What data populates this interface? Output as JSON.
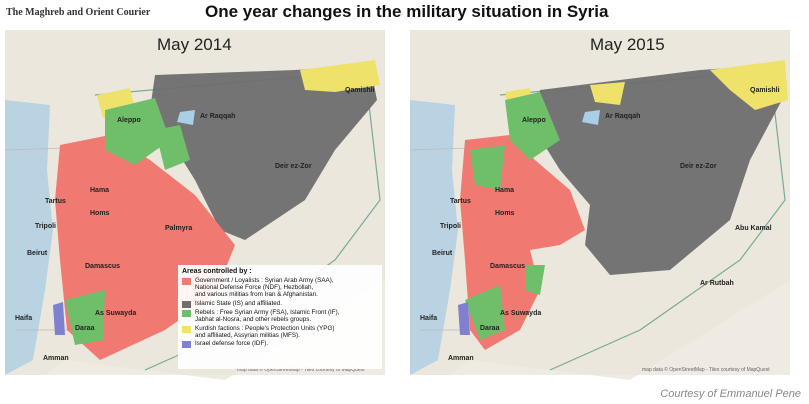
{
  "header": {
    "logo": "The Maghreb and Orient Courier",
    "title": "One year changes in the military situation in Syria"
  },
  "maps": [
    {
      "label": "May 2014",
      "attribution": "map data © OpenStreetMap - Tiles courtesy of MapQuest",
      "cities": [
        "Aleppo",
        "Ar Raqqah",
        "Deir ez-Zor",
        "Qamishli",
        "Hama",
        "Homs",
        "Tartus",
        "Tripoli",
        "Beirut",
        "Damascus",
        "As Suwayda",
        "Daraa",
        "Haifa",
        "Amman",
        "Palmyra"
      ]
    },
    {
      "label": "May 2015",
      "attribution": "map data © OpenStreetMap - Tiles courtesy of MapQuest",
      "cities": [
        "Aleppo",
        "Ar Raqqah",
        "Deir ez-Zor",
        "Qamishli",
        "Hama",
        "Homs",
        "Tartus",
        "Tripoli",
        "Beirut",
        "Damascus",
        "As Suwayda",
        "Daraa",
        "Haifa",
        "Amman",
        "Abu Kamal",
        "Ar Rutbah"
      ]
    }
  ],
  "legend": {
    "title": "Areas controlled by :",
    "items": [
      {
        "color": "#f07a72",
        "lines": [
          "Government / Loyalists : Syrian Arab Army (SAA),",
          "National Defense Force (NDF), Hezbollah,",
          "and various militias from Iran & Afghanistan."
        ]
      },
      {
        "color": "#6e6e6e",
        "lines": [
          "Islamic State (IS) and affiliated."
        ]
      },
      {
        "color": "#6fbf6a",
        "lines": [
          "Rebels : Free Syrian Army (FSA), Islamic Front (IF),",
          "Jabhat al-Nosra, and other rebels groups."
        ]
      },
      {
        "color": "#efe26a",
        "lines": [
          "Kurdish factions : People's Protection Units (YPG)",
          "and affiliated, Assyrian militias (MFS)."
        ]
      },
      {
        "color": "#8080d0",
        "lines": [
          "Israel defense force (IDF)."
        ]
      }
    ]
  },
  "credit": "Courtesy of Emmanuel Pene"
}
